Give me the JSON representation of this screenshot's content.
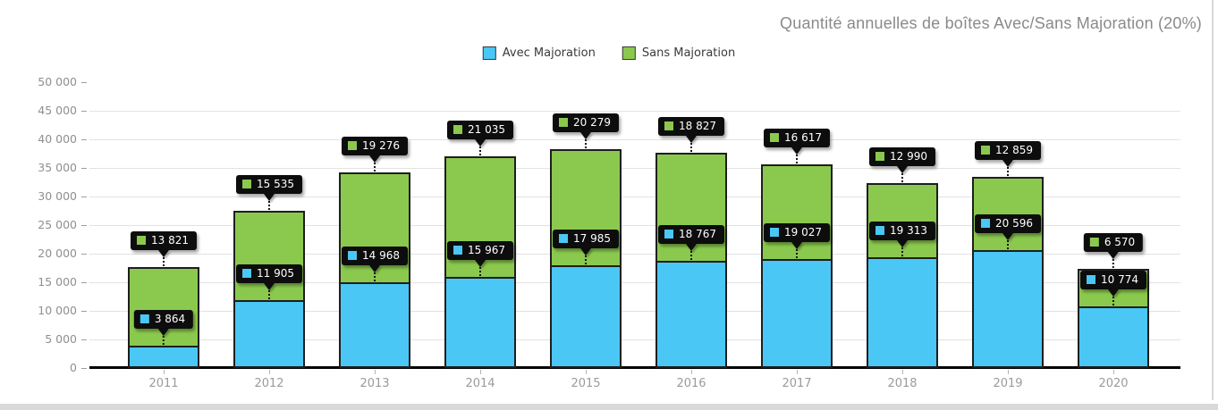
{
  "chart_data": {
    "type": "bar",
    "stacked": true,
    "title": "Quantité annuelles de boîtes Avec/Sans Majoration (20%)",
    "categories": [
      "2011",
      "2012",
      "2013",
      "2014",
      "2015",
      "2016",
      "2017",
      "2018",
      "2019",
      "2020"
    ],
    "series": [
      {
        "name": "Avec Majoration",
        "color": "#4AC7F4",
        "values": [
          3864,
          11905,
          14968,
          15967,
          17985,
          18767,
          19027,
          19313,
          20596,
          10774
        ],
        "labels": [
          "3 864",
          "11 905",
          "14 968",
          "15 967",
          "17 985",
          "18 767",
          "19 027",
          "19 313",
          "20 596",
          "10 774"
        ]
      },
      {
        "name": "Sans Majoration",
        "color": "#8BC94E",
        "values": [
          13821,
          15535,
          19276,
          21035,
          20279,
          18827,
          16617,
          12990,
          12859,
          6570
        ],
        "labels": [
          "13 821",
          "15 535",
          "19 276",
          "21 035",
          "20 279",
          "18 827",
          "16 617",
          "12 990",
          "12 859",
          "6 570"
        ]
      }
    ],
    "y_axis": {
      "min": 0,
      "max": 50000,
      "step": 5000,
      "tick_labels": [
        "0",
        "5 000",
        "10 000",
        "15 000",
        "20 000",
        "25 000",
        "30 000",
        "35 000",
        "40 000",
        "45 000",
        "50 000"
      ]
    },
    "legend_position": "top-center",
    "grid": true,
    "grid_color": "#e2e2e2",
    "axis_text_color": "#8f8f8f",
    "title_color": "#8a8a8a",
    "data_label_bg": "#0d0d0d",
    "data_label_text_color": "#ffffff"
  }
}
